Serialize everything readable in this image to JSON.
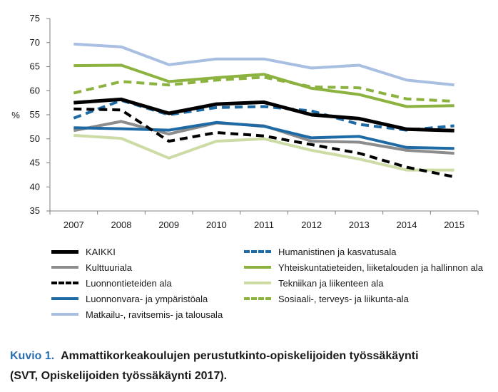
{
  "chart_data": {
    "type": "line",
    "ylabel": "%",
    "ylim": [
      35,
      75
    ],
    "yticks": [
      35,
      40,
      45,
      50,
      55,
      60,
      65,
      70,
      75
    ],
    "x": [
      "2007",
      "2008",
      "2009",
      "2010",
      "2011",
      "2012",
      "2013",
      "2014",
      "2015"
    ],
    "grid": false,
    "legend_position": "bottom",
    "series": [
      {
        "name": "KAIKKI",
        "color": "#000000",
        "dash": "solid",
        "width": 5,
        "values": [
          57.5,
          58.2,
          55.3,
          57.2,
          57.6,
          55.0,
          54.2,
          52.0,
          51.7
        ]
      },
      {
        "name": "Kulttuuriala",
        "color": "#8c8c8c",
        "dash": "solid",
        "width": 4,
        "values": [
          51.7,
          53.6,
          51.0,
          53.3,
          52.7,
          49.5,
          49.3,
          47.6,
          47.0
        ]
      },
      {
        "name": "Luonnontieteiden ala",
        "color": "#000000",
        "dash": "dashed",
        "width": 4,
        "values": [
          56.2,
          56.0,
          49.5,
          51.3,
          50.6,
          48.8,
          47.0,
          44.1,
          42.1
        ]
      },
      {
        "name": "Luonnonvara- ja ympäristöala",
        "color": "#1d6aa5",
        "dash": "solid",
        "width": 4,
        "values": [
          52.3,
          52.1,
          51.8,
          53.4,
          52.6,
          50.2,
          50.5,
          48.2,
          48.0
        ]
      },
      {
        "name": "Matkailu-, ravitsemis- ja talousala",
        "color": "#a9bfe2",
        "dash": "solid",
        "width": 4,
        "values": [
          69.7,
          69.1,
          65.4,
          66.6,
          66.6,
          64.7,
          65.3,
          62.2,
          61.2
        ]
      },
      {
        "name": "Humanistinen ja kasvatusala",
        "color": "#1d6aa5",
        "dash": "dashed",
        "width": 4,
        "values": [
          54.3,
          58.0,
          55.0,
          56.5,
          56.7,
          55.8,
          53.0,
          51.8,
          52.7
        ]
      },
      {
        "name": "Yhteiskuntatieteiden, liiketalouden ja hallinnon ala",
        "color": "#8cb23f",
        "dash": "solid",
        "width": 4,
        "values": [
          65.2,
          65.3,
          61.9,
          62.7,
          63.4,
          60.5,
          59.2,
          56.7,
          56.9
        ]
      },
      {
        "name": "Tekniikan ja liikenteen ala",
        "color": "#ccdca4",
        "dash": "solid",
        "width": 4,
        "values": [
          50.7,
          50.1,
          46.0,
          49.5,
          50.0,
          47.6,
          45.8,
          43.5,
          43.5
        ]
      },
      {
        "name": "Sosiaali-, terveys- ja liikunta-ala",
        "color": "#8cb23f",
        "dash": "dashed",
        "width": 4,
        "values": [
          59.5,
          61.9,
          61.2,
          62.2,
          62.8,
          60.8,
          60.6,
          58.3,
          57.8
        ]
      }
    ]
  },
  "caption": {
    "label": "Kuvio 1.",
    "line1": "Ammattikorkeakoulujen perustutkinto-opiskelijoiden työssäkäynti",
    "line2": "(SVT, Opiskelijoiden työssäkäynti 2017)."
  }
}
